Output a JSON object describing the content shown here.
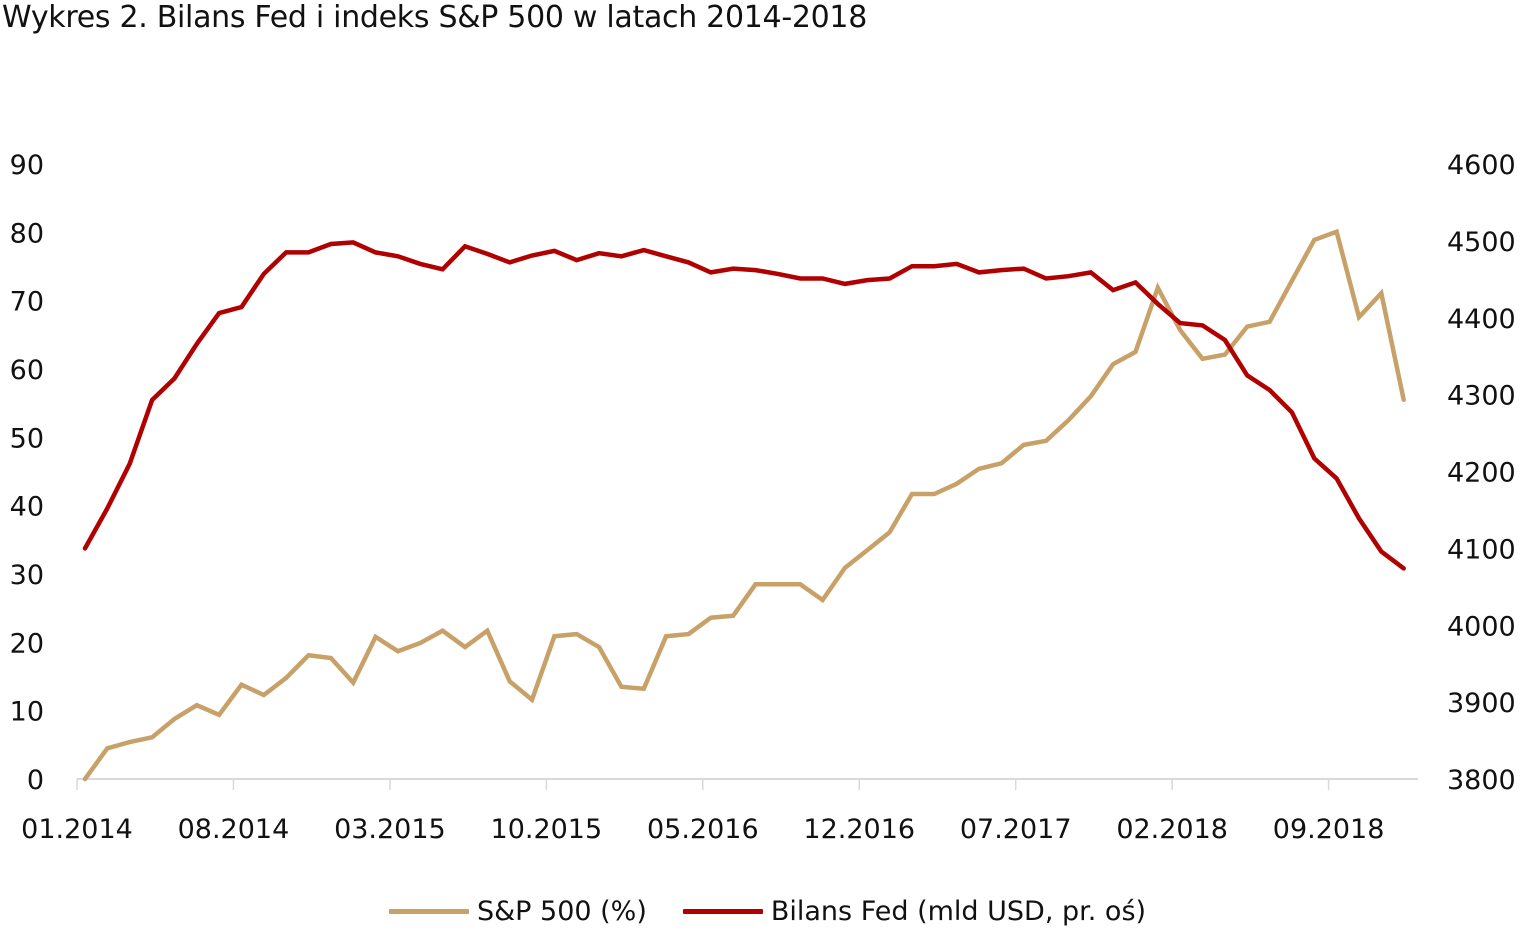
{
  "chart_data": {
    "type": "line",
    "title": "Wykres 2. Bilans Fed i indeks S&P 500 w latach 2014-2018",
    "xlabel": "",
    "ylabel": "",
    "x_tick_labels": [
      "01.2014",
      "08.2014",
      "03.2015",
      "10.2015",
      "05.2016",
      "12.2016",
      "07.2017",
      "02.2018",
      "09.2018"
    ],
    "y_left": {
      "ylim": [
        0,
        90
      ],
      "ticks": [
        "0",
        "10",
        "20",
        "30",
        "40",
        "50",
        "60",
        "70",
        "80",
        "90"
      ]
    },
    "y_right": {
      "ylim": [
        3800,
        4600
      ],
      "ticks": [
        "3800",
        "3900",
        "4000",
        "4100",
        "4200",
        "4300",
        "4400",
        "4500",
        "4600"
      ]
    },
    "grid": false,
    "legend_position": "bottom",
    "x_period": "monthly, 01.2014 – 12.2018",
    "series": [
      {
        "name": "S&P 500 (%)",
        "axis": "left",
        "color": "#C8A169",
        "values": [
          0,
          4.5,
          5.4,
          6.1,
          8.8,
          10.8,
          9.4,
          13.8,
          12.3,
          14.8,
          18.1,
          17.7,
          14.1,
          20.8,
          18.7,
          19.9,
          21.7,
          19.3,
          21.7,
          14.3,
          11.6,
          20.9,
          21.2,
          19.3,
          13.5,
          13.2,
          20.9,
          21.2,
          23.6,
          23.9,
          28.5,
          28.5,
          28.5,
          26.2,
          30.9,
          33.5,
          36.1,
          41.7,
          41.7,
          43.2,
          45.4,
          46.2,
          48.9,
          49.5,
          52.5,
          56.0,
          60.7,
          62.5,
          71.9,
          65.7,
          61.5,
          62.1,
          66.2,
          66.9,
          72.9,
          78.9,
          80.1,
          67.6,
          71.1,
          55.5
        ]
      },
      {
        "name": "Bilans Fed (mld USD, pr. oś)",
        "axis": "right",
        "color": "#B00000",
        "values": [
          4100,
          4152,
          4210,
          4293,
          4321,
          4366,
          4406,
          4414,
          4457,
          4485,
          4485,
          4496,
          4498,
          4485,
          4480,
          4470,
          4463,
          4493,
          4483,
          4472,
          4481,
          4487,
          4475,
          4484,
          4480,
          4488,
          4480,
          4472,
          4459,
          4464,
          4462,
          4457,
          4451,
          4451,
          4444,
          4449,
          4451,
          4467,
          4467,
          4470,
          4459,
          4462,
          4464,
          4451,
          4454,
          4459,
          4436,
          4446,
          4418,
          4393,
          4390,
          4371,
          4325,
          4306,
          4277,
          4217,
          4191,
          4139,
          4096,
          4074
        ]
      }
    ]
  }
}
